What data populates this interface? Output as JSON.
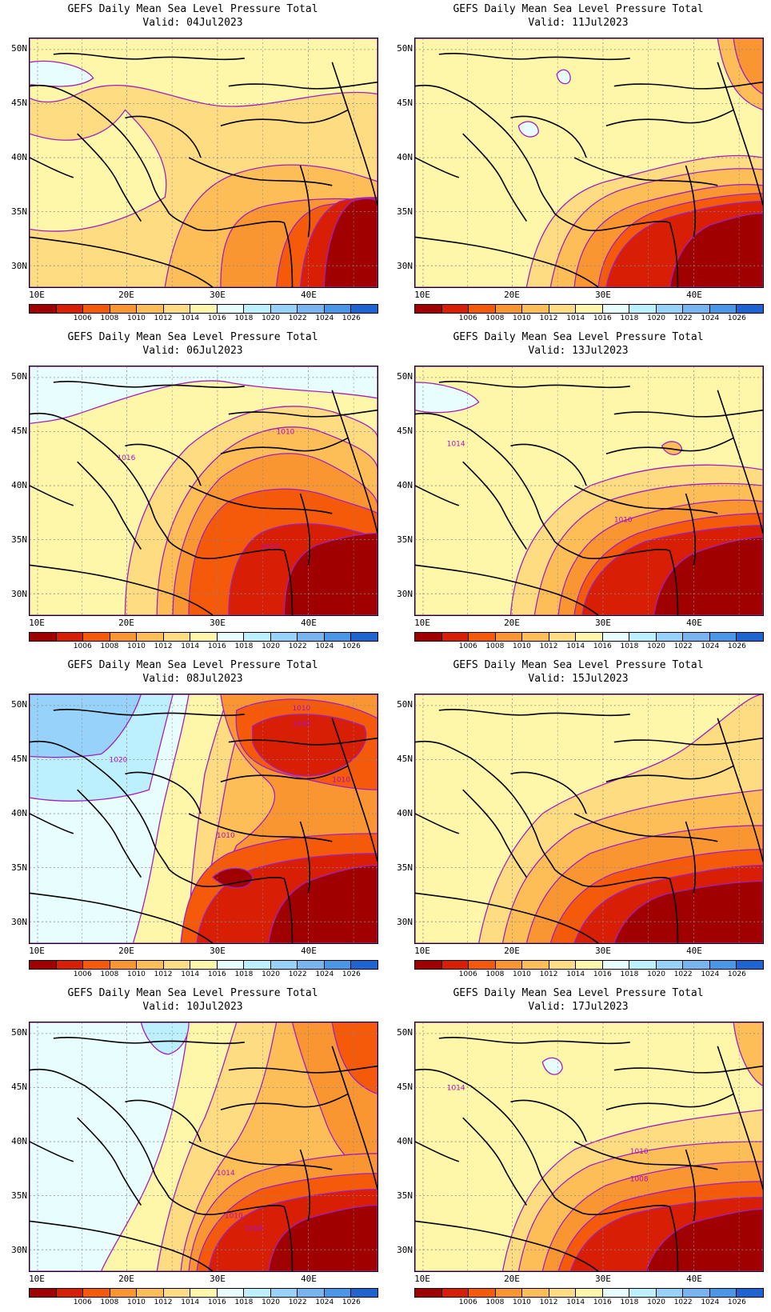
{
  "colorbar": {
    "colors": [
      "#a00000",
      "#d81e05",
      "#f55a0a",
      "#fa9632",
      "#fdbe58",
      "#fedc82",
      "#fef6a8",
      "#e8fefe",
      "#bdf0fe",
      "#96d2fa",
      "#78b4f0",
      "#4a96e8",
      "#1e64d2"
    ],
    "labels": [
      "1006",
      "1008",
      "1010",
      "1012",
      "1014",
      "1016",
      "1018",
      "1020",
      "1022",
      "1024",
      "1026"
    ]
  },
  "axes": {
    "lat_labels": [
      "50N",
      "45N",
      "40N",
      "35N",
      "30N"
    ],
    "lon_labels": [
      "10E",
      "20E",
      "30E",
      "40E"
    ]
  },
  "panels": [
    {
      "title": "GEFS Daily Mean Sea Level Pressure Total",
      "valid": "Valid: 04Jul2023",
      "variant": "mild",
      "contour_labels": []
    },
    {
      "title": "GEFS Daily Mean Sea Level Pressure Total",
      "valid": "Valid: 11Jul2023",
      "variant": "mild2",
      "contour_labels": []
    },
    {
      "title": "GEFS Daily Mean Sea Level Pressure Total",
      "valid": "Valid: 06Jul2023",
      "variant": "strong",
      "contour_labels": [
        "1010",
        "1016",
        "1010"
      ]
    },
    {
      "title": "GEFS Daily Mean Sea Level Pressure Total",
      "valid": "Valid: 13Jul2023",
      "variant": "mild3",
      "contour_labels": [
        "1014",
        "1010"
      ]
    },
    {
      "title": "GEFS Daily Mean Sea Level Pressure Total",
      "valid": "Valid: 08Jul2023",
      "variant": "high",
      "contour_labels": [
        "1010",
        "1008",
        "1020",
        "1010",
        "1010"
      ]
    },
    {
      "title": "GEFS Daily Mean Sea Level Pressure Total",
      "valid": "Valid: 15Jul2023",
      "variant": "mild4",
      "contour_labels": []
    },
    {
      "title": "GEFS Daily Mean Sea Level Pressure Total",
      "valid": "Valid: 10Jul2023",
      "variant": "high2",
      "contour_labels": [
        "1014",
        "1010",
        "1008"
      ]
    },
    {
      "title": "GEFS Daily Mean Sea Level Pressure Total",
      "valid": "Valid: 17Jul2023",
      "variant": "mild5",
      "contour_labels": [
        "1014",
        "1010",
        "1008"
      ]
    }
  ]
}
